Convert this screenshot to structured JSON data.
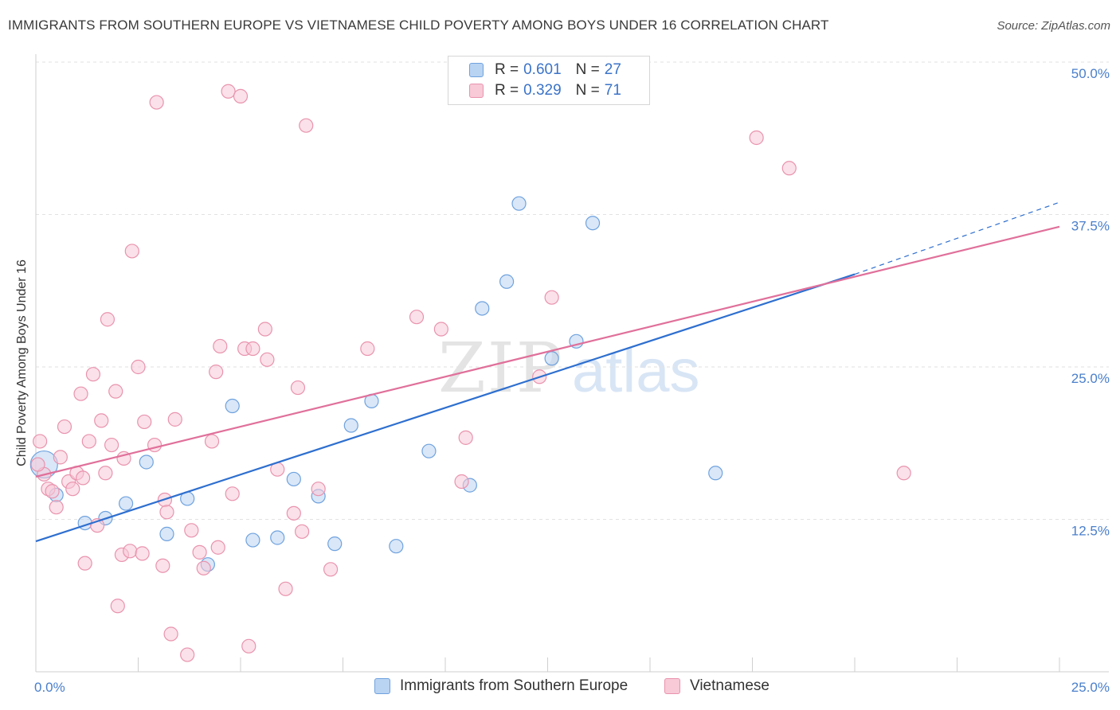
{
  "title": "IMMIGRANTS FROM SOUTHERN EUROPE VS VIETNAMESE CHILD POVERTY AMONG BOYS UNDER 16 CORRELATION CHART",
  "source": "Source: ZipAtlas.com",
  "watermark": {
    "zip": "ZIP",
    "atlas": "atlas"
  },
  "legend": {
    "rows": [
      {
        "r_label": "R =",
        "r_value": "0.601",
        "n_label": "N =",
        "n_value": "27"
      },
      {
        "r_label": "R =",
        "r_value": "0.329",
        "n_label": "N =",
        "n_value": "71"
      }
    ]
  },
  "chart_data": {
    "type": "scatter",
    "ylabel": "Child Poverty Among Boys Under 16",
    "xlim": [
      0,
      25
    ],
    "ylim": [
      0,
      50
    ],
    "x_tick_labels": [
      "0.0%",
      "25.0%"
    ],
    "y_ticks": [
      12.5,
      25.0,
      37.5,
      50.0
    ],
    "y_tick_labels": [
      "12.5%",
      "25.0%",
      "37.5%",
      "50.0%"
    ],
    "grid": "horizontal dashed",
    "legend_position": "top-center",
    "series": [
      {
        "name": "Immigrants from Southern Europe",
        "color": "#6fa2de",
        "fill": "#b9d3f3",
        "points": [
          [
            0.2,
            17.0
          ],
          [
            0.5,
            14.5
          ],
          [
            1.2,
            12.2
          ],
          [
            1.7,
            12.6
          ],
          [
            2.2,
            13.8
          ],
          [
            2.7,
            17.2
          ],
          [
            3.2,
            11.3
          ],
          [
            3.7,
            14.2
          ],
          [
            4.2,
            8.8
          ],
          [
            4.8,
            21.8
          ],
          [
            5.3,
            10.8
          ],
          [
            5.9,
            11.0
          ],
          [
            6.3,
            15.8
          ],
          [
            6.9,
            14.4
          ],
          [
            7.3,
            10.5
          ],
          [
            7.7,
            20.2
          ],
          [
            8.2,
            22.2
          ],
          [
            8.8,
            10.3
          ],
          [
            9.6,
            18.1
          ],
          [
            10.6,
            15.3
          ],
          [
            10.9,
            29.8
          ],
          [
            11.5,
            32.0
          ],
          [
            11.8,
            38.4
          ],
          [
            12.6,
            25.7
          ],
          [
            13.2,
            27.1
          ],
          [
            13.6,
            36.8
          ],
          [
            16.6,
            16.3
          ]
        ],
        "trend": {
          "x0": 0,
          "y0": 10.7,
          "x1": 20.0,
          "y1": 32.6,
          "dash_to_x": 25.0,
          "dash_to_y": 38.5,
          "color": "#2e6fcf"
        }
      },
      {
        "name": "Vietnamese",
        "color": "#e993ae",
        "fill": "#f8c9d7",
        "points": [
          [
            0.1,
            18.9
          ],
          [
            0.2,
            16.2
          ],
          [
            0.3,
            15.0
          ],
          [
            0.4,
            14.8
          ],
          [
            0.5,
            13.5
          ],
          [
            0.6,
            17.6
          ],
          [
            0.7,
            20.1
          ],
          [
            0.8,
            15.6
          ],
          [
            0.9,
            15.0
          ],
          [
            1.0,
            16.3
          ],
          [
            1.1,
            22.8
          ],
          [
            1.15,
            15.9
          ],
          [
            1.2,
            8.9
          ],
          [
            1.3,
            18.9
          ],
          [
            1.4,
            24.4
          ],
          [
            1.5,
            12.0
          ],
          [
            1.6,
            20.6
          ],
          [
            1.7,
            16.3
          ],
          [
            1.75,
            28.9
          ],
          [
            1.85,
            18.6
          ],
          [
            1.95,
            23.0
          ],
          [
            2.0,
            5.4
          ],
          [
            2.1,
            9.6
          ],
          [
            2.15,
            17.5
          ],
          [
            2.3,
            9.9
          ],
          [
            2.35,
            34.5
          ],
          [
            2.5,
            25.0
          ],
          [
            2.6,
            9.7
          ],
          [
            2.65,
            20.5
          ],
          [
            2.9,
            18.6
          ],
          [
            2.95,
            46.7
          ],
          [
            3.1,
            8.7
          ],
          [
            3.15,
            14.1
          ],
          [
            3.2,
            13.1
          ],
          [
            3.3,
            3.1
          ],
          [
            3.4,
            20.7
          ],
          [
            3.7,
            1.4
          ],
          [
            3.8,
            11.6
          ],
          [
            4.0,
            9.8
          ],
          [
            4.1,
            8.5
          ],
          [
            4.3,
            18.9
          ],
          [
            4.4,
            24.6
          ],
          [
            4.45,
            10.2
          ],
          [
            4.5,
            26.7
          ],
          [
            4.7,
            47.6
          ],
          [
            4.8,
            14.6
          ],
          [
            5.0,
            47.2
          ],
          [
            5.1,
            26.5
          ],
          [
            5.2,
            2.1
          ],
          [
            5.3,
            26.5
          ],
          [
            5.6,
            28.1
          ],
          [
            5.65,
            25.6
          ],
          [
            5.9,
            16.6
          ],
          [
            6.1,
            6.8
          ],
          [
            6.3,
            13.0
          ],
          [
            6.4,
            23.3
          ],
          [
            6.5,
            11.5
          ],
          [
            6.6,
            44.8
          ],
          [
            6.9,
            15.0
          ],
          [
            7.2,
            8.4
          ],
          [
            8.1,
            26.5
          ],
          [
            9.3,
            29.1
          ],
          [
            9.9,
            28.1
          ],
          [
            10.4,
            15.6
          ],
          [
            10.5,
            19.2
          ],
          [
            12.3,
            24.2
          ],
          [
            12.6,
            30.7
          ],
          [
            17.6,
            43.8
          ],
          [
            18.4,
            41.3
          ],
          [
            21.2,
            16.3
          ],
          [
            0.05,
            17.0
          ]
        ],
        "trend": {
          "x0": 0,
          "y0": 16.0,
          "x1": 25.0,
          "y1": 36.5,
          "color": "#e0709a"
        }
      }
    ]
  }
}
